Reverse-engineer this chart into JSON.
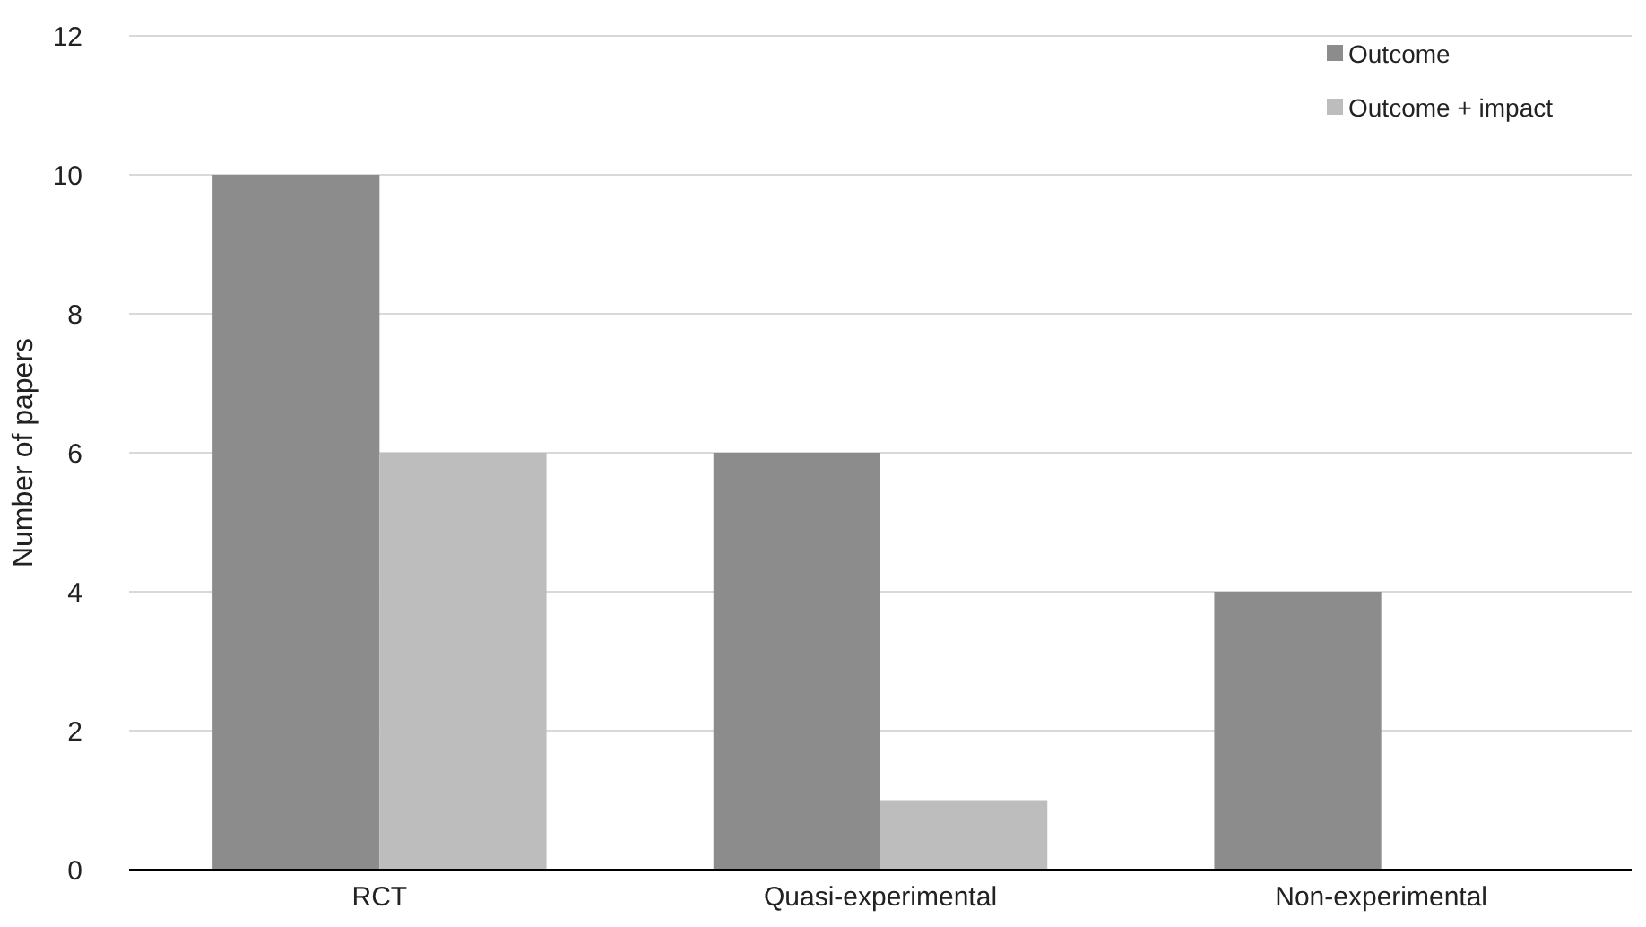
{
  "chart_data": {
    "type": "bar",
    "ylabel": "Number of papers",
    "categories": [
      "RCT",
      "Quasi-experimental",
      "Non-experimental"
    ],
    "series": [
      {
        "name": "Outcome",
        "color": "#8c8c8c",
        "values": [
          10,
          6,
          4
        ]
      },
      {
        "name": "Outcome + impact",
        "color": "#bdbdbd",
        "values": [
          6,
          1,
          0
        ]
      }
    ],
    "ylim": [
      0,
      12
    ],
    "yticks": [
      0,
      2,
      4,
      6,
      8,
      10,
      12
    ],
    "grid": "y",
    "legend": "top right"
  }
}
